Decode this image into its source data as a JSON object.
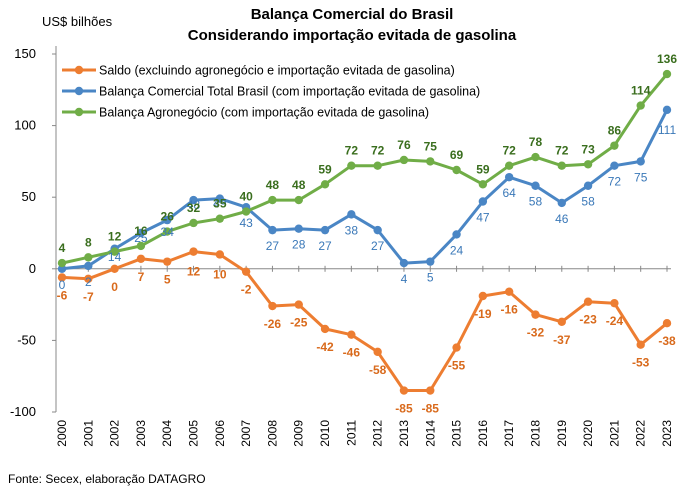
{
  "chart_data": {
    "type": "line",
    "title": "Balança Comercial do Brasil",
    "subtitle": "Considerando importação evitada de gasolina",
    "unit_label": "US$ bilhões",
    "source": "Fonte: Secex, elaboração DATAGRO",
    "x": [
      "2000",
      "2001",
      "2002",
      "2003",
      "2004",
      "2005",
      "2006",
      "2007",
      "2008",
      "2009",
      "2010",
      "2011",
      "2012",
      "2013",
      "2014",
      "2015",
      "2016",
      "2017",
      "2018",
      "2019",
      "2020",
      "2021",
      "2022",
      "2023"
    ],
    "ylim": [
      -100,
      150
    ],
    "yticks": [
      -100,
      -50,
      0,
      50,
      100,
      150
    ],
    "grid": false,
    "legend_position": "top-left",
    "series": [
      {
        "name": "Saldo (excluindo agronegócio e importação evitada de gasolina)",
        "color": "#ED7D31",
        "values": [
          -6,
          -7,
          0,
          7,
          5,
          12,
          10,
          -2,
          -26,
          -25,
          -42,
          -46,
          -58,
          -85,
          -85,
          -55,
          -19,
          -16,
          -32,
          -37,
          -23,
          -24,
          -53,
          -38
        ],
        "labels": [
          "-6",
          "-7",
          "0",
          "7",
          "5",
          "12",
          "10",
          "-2",
          "-26",
          "-25",
          "-42",
          "-46",
          "-58",
          "-85",
          "-85",
          "-55",
          "-19",
          "-16",
          "-32",
          "-37",
          "-23",
          "-24",
          "-53",
          "-38"
        ]
      },
      {
        "name": "Balança Comercial Total Brasil (com importação evitada de gasolina)",
        "color": "#4A86C5",
        "values": [
          0,
          2,
          14,
          25,
          34,
          48,
          49,
          43,
          27,
          28,
          27,
          38,
          27,
          4,
          5,
          24,
          47,
          64,
          58,
          46,
          58,
          72,
          75,
          111
        ],
        "labels": [
          "0",
          "2",
          "14",
          "25",
          "34",
          "48",
          "49",
          "43",
          "27",
          "28",
          "27",
          "38",
          "27",
          "4",
          "5",
          "24",
          "47",
          "64",
          "58",
          "46",
          "58",
          "72",
          "75",
          "111"
        ]
      },
      {
        "name": "Balança Agronegócio (com importação evitada de gasolina)",
        "color": "#70AD47",
        "values": [
          4,
          8,
          12,
          16,
          26,
          32,
          35,
          40,
          48,
          48,
          59,
          72,
          72,
          76,
          75,
          69,
          59,
          72,
          78,
          72,
          73,
          86,
          114,
          136
        ],
        "labels": [
          "4",
          "8",
          "12",
          "16",
          "26",
          "32",
          "35",
          "40",
          "48",
          "48",
          "59",
          "72",
          "72",
          "76",
          "75",
          "69",
          "59",
          "72",
          "78",
          "72",
          "73",
          "86",
          "114",
          "136"
        ]
      }
    ]
  },
  "label_colors": {
    "orange": "#D96A1C",
    "blue": "#3A78B8",
    "green": "#3A6E1E"
  }
}
